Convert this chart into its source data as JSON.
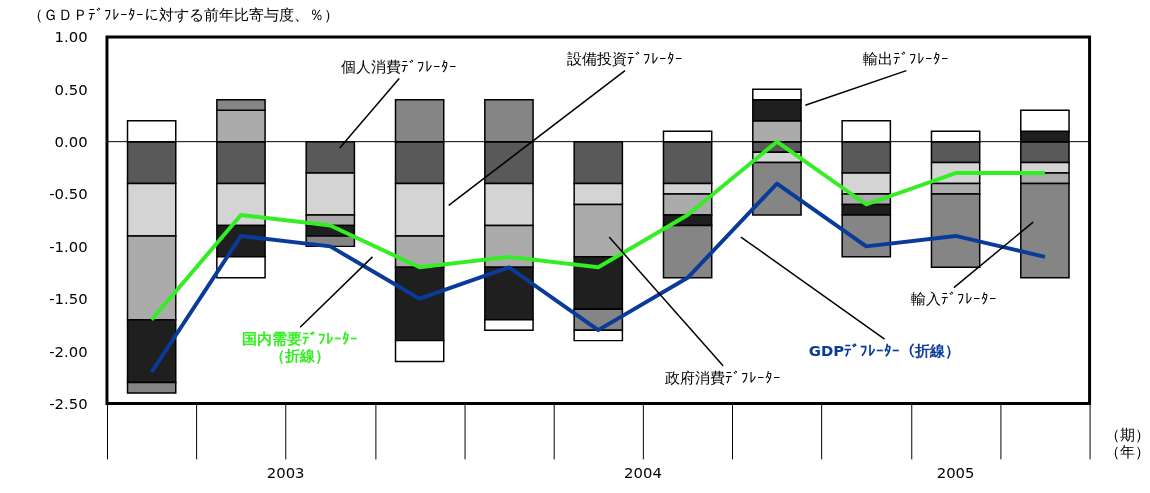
{
  "chart_data": {
    "type": "bar",
    "stacked": true,
    "ylabel": "（ＧＤＰﾃﾞﾌﾚｰﾀｰに対する前年比寄与度、％）",
    "categories": [
      null,
      null,
      null,
      null,
      null,
      null,
      null,
      null,
      null,
      null,
      null
    ],
    "ylim": [
      -2.5,
      1.0
    ],
    "yticks": [
      {
        "value": 1.0,
        "label": "1.00"
      },
      {
        "value": 0.5,
        "label": "0.50"
      },
      {
        "value": 0,
        "label": "0.00"
      },
      {
        "value": -0.5,
        "label": "-0.50"
      },
      {
        "value": -1.0,
        "label": "-1.00"
      },
      {
        "value": -1.5,
        "label": "-1.50"
      },
      {
        "value": -2.0,
        "label": "-2.00"
      },
      {
        "value": -2.5,
        "label": "-2.50"
      }
    ],
    "series": [
      {
        "name": "個人消費ﾃﾞﾌﾚｰﾀｰ",
        "color": "#595959",
        "values": [
          -0.4,
          -0.4,
          -0.3,
          -0.4,
          -0.4,
          -0.4,
          -0.4,
          -0.1,
          -0.3,
          -0.2,
          -0.2
        ]
      },
      {
        "name": "設備投資ﾃﾞﾌﾚｰﾀｰ",
        "color": "#d4d4d4",
        "values": [
          -0.5,
          -0.4,
          -0.4,
          -0.5,
          -0.4,
          -0.2,
          -0.1,
          -0.1,
          -0.2,
          -0.2,
          -0.1
        ]
      },
      {
        "name": "政府消費ﾃﾞﾌﾚｰﾀｰ",
        "color": "#ababab",
        "values": [
          -0.8,
          0.3,
          -0.1,
          -0.3,
          -0.4,
          -0.5,
          -0.2,
          0.2,
          -0.1,
          -0.1,
          -0.1
        ]
      },
      {
        "name": "輸出ﾃﾞﾌﾚｰﾀｰ",
        "color": "#1f1f1f",
        "values": [
          -0.6,
          -0.3,
          -0.1,
          -0.7,
          -0.5,
          -0.5,
          -0.1,
          0.2,
          -0.1,
          null,
          0.1
        ]
      },
      {
        "name": "輸入ﾃﾞﾌﾚｰﾀｰ",
        "color": "#858585",
        "values": [
          -0.1,
          0.1,
          -0.1,
          0.4,
          0.4,
          -0.2,
          -0.5,
          -0.5,
          -0.4,
          -0.7,
          -0.9
        ]
      },
      {
        "color": "#ffffff",
        "values": [
          0.2,
          -0.2,
          null,
          -0.2,
          -0.1,
          -0.1,
          0.1,
          0.1,
          0.2,
          0.1,
          0.2
        ]
      },
      {
        "name": "国内需要ﾃﾞﾌﾚｰﾀｰ（折線）",
        "type": "line",
        "color": "#33ee22",
        "values": [
          -1.7,
          -0.7,
          -0.8,
          -1.2,
          -1.1,
          -1.2,
          -0.7,
          0.0,
          -0.6,
          -0.3,
          -0.3
        ]
      },
      {
        "name": "GDPﾃﾞﾌﾚｰﾀｰ（折線）",
        "type": "line",
        "color": "#0a3a9a",
        "values": [
          -2.2,
          -0.9,
          -1.0,
          -1.5,
          -1.2,
          -1.8,
          -1.3,
          -0.4,
          -1.0,
          -0.9,
          -1.1
        ]
      }
    ],
    "ref_lines": [
      {
        "axis": "y",
        "value": 0
      }
    ],
    "annotations": [
      "2003",
      "2004",
      "2005",
      "（期）（年）"
    ],
    "grid": false
  }
}
